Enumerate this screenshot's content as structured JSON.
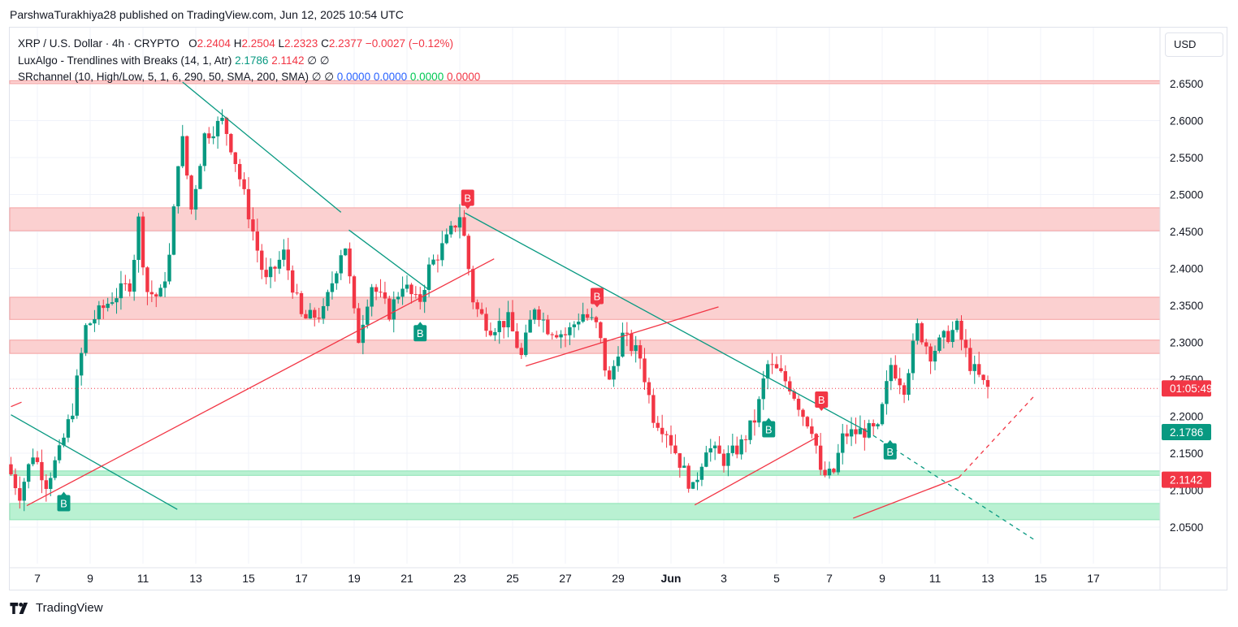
{
  "publisher_line": "ParshwaTurakhiya28 published on TradingView.com, Jun 12, 2025 10:54 UTC",
  "legend": {
    "symbol": "XRP / U.S. Dollar · 4h · CRYPTO",
    "o_label": "O",
    "o": "2.2404",
    "h_label": "H",
    "h": "2.2504",
    "l_label": "L",
    "l": "2.2323",
    "c_label": "C",
    "c": "2.2377",
    "change": "−0.0027 (−0.12%)",
    "ind1_name": "LuxAlgo - Trendlines with Breaks (14, 1, Atr)",
    "ind1_v1": "2.1786",
    "ind1_v2": "2.1142",
    "ind1_v3": "∅",
    "ind1_v4": "∅",
    "ind2_name": "SRchannel (10, High/Low, 5, 1, 6, 290, 50, SMA, 200, SMA)",
    "ind2_v1": "∅",
    "ind2_v2": "∅",
    "ind2_v3": "0.0000",
    "ind2_v4": "0.0000",
    "ind2_v5": "0.0000",
    "ind2_v6": "0.0000"
  },
  "currency_button": "USD",
  "footer_brand": "TradingView",
  "colors": {
    "up": "#089981",
    "down": "#f23645",
    "resistance_zone": "#fbd0d0",
    "support_zone": "#b9f1d2",
    "trend_down": "#089981",
    "trend_up": "#f23645",
    "last_price_label": "#f23645",
    "upper_label": "#089981",
    "lower_label": "#f23645"
  },
  "chart_data": {
    "type": "candlestick",
    "timeframe": "4h",
    "y_ticks": [
      2.05,
      2.1,
      2.15,
      2.2,
      2.25,
      2.3,
      2.35,
      2.4,
      2.45,
      2.5,
      2.55,
      2.6,
      2.65
    ],
    "y_tick_labels": [
      "2.0500",
      "2.1000",
      "2.1500",
      "2.2000",
      "2.2500",
      "2.3000",
      "2.3500",
      "2.4000",
      "2.4500",
      "2.5000",
      "2.5500",
      "2.6000",
      "2.6500"
    ],
    "x_ticks": [
      "7",
      "9",
      "11",
      "13",
      "15",
      "17",
      "19",
      "21",
      "23",
      "25",
      "27",
      "29",
      "Jun",
      "3",
      "5",
      "7",
      "9",
      "11",
      "13",
      "15",
      "17"
    ],
    "ylim": [
      2.005,
      2.68
    ],
    "price_labels": {
      "last": {
        "value": 2.2377,
        "text": "01:05:49"
      },
      "trend_upper": {
        "value": 2.1786,
        "text": "2.1786"
      },
      "trend_lower": {
        "value": 2.1142,
        "text": "2.1142"
      }
    },
    "zones": [
      {
        "type": "resistance",
        "low": 2.65,
        "high": 2.654
      },
      {
        "type": "resistance",
        "low": 2.451,
        "high": 2.482
      },
      {
        "type": "resistance",
        "low": 2.331,
        "high": 2.361
      },
      {
        "type": "resistance",
        "low": 2.285,
        "high": 2.303
      },
      {
        "type": "support",
        "low": 2.12,
        "high": 2.126
      },
      {
        "type": "support",
        "low": 2.06,
        "high": 2.082
      }
    ],
    "trendlines": [
      {
        "kind": "down",
        "from": [
          6.0,
          2.202
        ],
        "to": [
          12.3,
          2.074
        ],
        "dashed": false
      },
      {
        "kind": "down",
        "from": [
          12.5,
          2.652
        ],
        "to": [
          18.5,
          2.476
        ],
        "dashed": false
      },
      {
        "kind": "down",
        "from": [
          18.8,
          2.452
        ],
        "to": [
          21.8,
          2.372
        ],
        "dashed": false
      },
      {
        "kind": "down",
        "from": [
          23.2,
          2.475
        ],
        "to": [
          38.4,
          2.18
        ],
        "dashed": false
      },
      {
        "kind": "down",
        "from": [
          38.4,
          2.18
        ],
        "to": [
          44.8,
          2.032
        ],
        "dashed": true
      },
      {
        "kind": "up",
        "from": [
          6.6,
          2.079
        ],
        "to": [
          24.3,
          2.413
        ],
        "dashed": false
      },
      {
        "kind": "up",
        "from": [
          25.5,
          2.268
        ],
        "to": [
          32.8,
          2.348
        ],
        "dashed": false
      },
      {
        "kind": "up",
        "from": [
          31.9,
          2.08
        ],
        "to": [
          36.6,
          2.173
        ],
        "dashed": false
      },
      {
        "kind": "up",
        "from": [
          37.9,
          2.062
        ],
        "to": [
          41.9,
          2.117
        ],
        "dashed": false
      },
      {
        "kind": "up",
        "from": [
          41.9,
          2.117
        ],
        "to": [
          44.8,
          2.229
        ],
        "dashed": true
      },
      {
        "kind": "up",
        "from": [
          6.0,
          2.213
        ],
        "to": [
          6.4,
          2.219
        ],
        "dashed": false
      }
    ],
    "break_markers": [
      {
        "x": 8.0,
        "price": 2.1,
        "side": "below",
        "text": "B",
        "dir": "up"
      },
      {
        "x": 21.5,
        "price": 2.33,
        "side": "below",
        "text": "B",
        "dir": "up"
      },
      {
        "x": 23.3,
        "price": 2.478,
        "side": "above",
        "text": "B",
        "dir": "down"
      },
      {
        "x": 28.2,
        "price": 2.345,
        "side": "above",
        "text": "B",
        "dir": "down"
      },
      {
        "x": 34.7,
        "price": 2.2,
        "side": "below",
        "text": "B",
        "dir": "up"
      },
      {
        "x": 36.7,
        "price": 2.205,
        "side": "above",
        "text": "B",
        "dir": "down"
      },
      {
        "x": 39.3,
        "price": 2.17,
        "side": "below",
        "text": "B",
        "dir": "up"
      }
    ],
    "price_path": [
      [
        6.0,
        2.135
      ],
      [
        6.5,
        2.095
      ],
      [
        7.0,
        2.15
      ],
      [
        7.5,
        2.11
      ],
      [
        8.0,
        2.15
      ],
      [
        8.5,
        2.21
      ],
      [
        9.0,
        2.32
      ],
      [
        10.0,
        2.36
      ],
      [
        10.7,
        2.38
      ],
      [
        11.0,
        2.465
      ],
      [
        11.3,
        2.37
      ],
      [
        11.8,
        2.36
      ],
      [
        12.2,
        2.42
      ],
      [
        12.6,
        2.59
      ],
      [
        13.0,
        2.48
      ],
      [
        13.5,
        2.58
      ],
      [
        14.2,
        2.6
      ],
      [
        14.6,
        2.555
      ],
      [
        15.2,
        2.47
      ],
      [
        15.8,
        2.38
      ],
      [
        16.5,
        2.42
      ],
      [
        17.2,
        2.33
      ],
      [
        18.0,
        2.34
      ],
      [
        18.8,
        2.44
      ],
      [
        19.3,
        2.3
      ],
      [
        19.8,
        2.38
      ],
      [
        20.5,
        2.34
      ],
      [
        21.0,
        2.38
      ],
      [
        21.6,
        2.35
      ],
      [
        22.0,
        2.4
      ],
      [
        22.7,
        2.44
      ],
      [
        23.2,
        2.475
      ],
      [
        23.7,
        2.35
      ],
      [
        24.3,
        2.32
      ],
      [
        25.0,
        2.33
      ],
      [
        25.5,
        2.28
      ],
      [
        26.0,
        2.35
      ],
      [
        26.5,
        2.32
      ],
      [
        27.2,
        2.31
      ],
      [
        27.8,
        2.34
      ],
      [
        28.4,
        2.32
      ],
      [
        28.8,
        2.24
      ],
      [
        29.3,
        2.31
      ],
      [
        30.0,
        2.28
      ],
      [
        30.5,
        2.2
      ],
      [
        31.0,
        2.18
      ],
      [
        31.6,
        2.13
      ],
      [
        32.0,
        2.1
      ],
      [
        32.5,
        2.16
      ],
      [
        33.2,
        2.14
      ],
      [
        33.8,
        2.16
      ],
      [
        34.4,
        2.2
      ],
      [
        34.8,
        2.27
      ],
      [
        35.2,
        2.26
      ],
      [
        35.7,
        2.24
      ],
      [
        36.2,
        2.2
      ],
      [
        36.6,
        2.18
      ],
      [
        36.8,
        2.12
      ],
      [
        37.3,
        2.12
      ],
      [
        37.7,
        2.175
      ],
      [
        38.5,
        2.18
      ],
      [
        39.0,
        2.18
      ],
      [
        39.5,
        2.27
      ],
      [
        40.0,
        2.24
      ],
      [
        40.5,
        2.32
      ],
      [
        41.0,
        2.285
      ],
      [
        41.5,
        2.305
      ],
      [
        42.0,
        2.32
      ],
      [
        42.5,
        2.27
      ],
      [
        43.1,
        2.238
      ]
    ]
  }
}
